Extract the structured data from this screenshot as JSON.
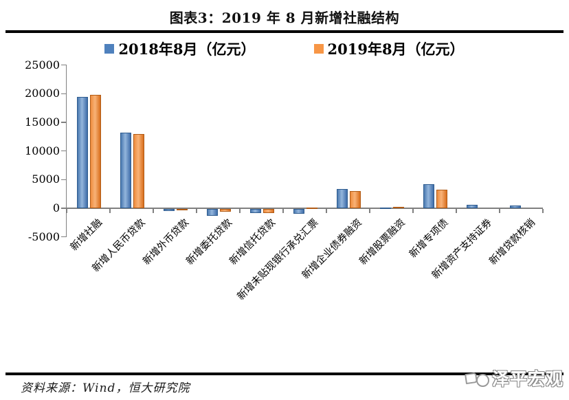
{
  "title": "图表3：2019 年 8 月新增社融结构",
  "legend": [
    {
      "label": "2018年8月（亿元）",
      "color": "#4f81bd"
    },
    {
      "label": "2019年8月（亿元）",
      "color": "#f79646"
    }
  ],
  "chart_data": {
    "type": "bar",
    "title": "图表3：2019 年 8 月新增社融结构",
    "categories": [
      "新增社融",
      "新增人民币贷款",
      "新增外币贷款",
      "新增委托贷款",
      "新增信托贷款",
      "新增未贴现银行承兑汇票",
      "新增企业债券融资",
      "新增股票融资",
      "新增专项债",
      "新增资产支持证券",
      "新增贷款核销"
    ],
    "series": [
      {
        "name": "2018年8月（亿元）",
        "color": "#4f81bd",
        "values": [
          19400,
          13200,
          -300,
          -1200,
          -700,
          -780,
          3380,
          140,
          4150,
          650,
          500
        ]
      },
      {
        "name": "2019年8月（亿元）",
        "color": "#f79646",
        "values": [
          19800,
          13000,
          -200,
          -500,
          -660,
          160,
          3040,
          260,
          3210,
          0,
          0
        ]
      }
    ],
    "ylabel": "",
    "xlabel": "",
    "ylim": [
      -5000,
      25000
    ],
    "yticks": [
      "25000",
      "20000",
      "15000",
      "10000",
      "5000",
      "0",
      "-5000"
    ],
    "grid": false,
    "legend_position": "top"
  },
  "footer": {
    "source": "资料来源：Wind，恒大研究院",
    "logo_text": "泽平宏观"
  }
}
